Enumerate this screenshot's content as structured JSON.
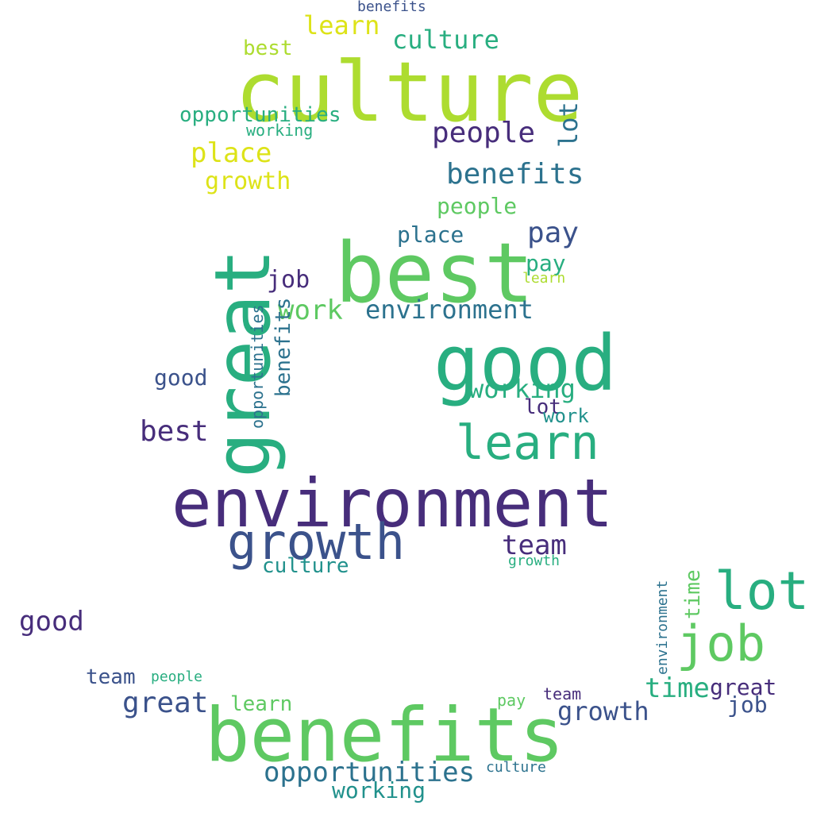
{
  "palette": {
    "purple": "#472d7b",
    "indigo": "#3b528b",
    "blue": "#2c728e",
    "teal": "#21918c",
    "green": "#28ae80",
    "lightgreen": "#5ec962",
    "lime": "#addc30",
    "yellow": "#dde318"
  },
  "words": [
    {
      "text": "culture",
      "color": "lime"
    },
    {
      "text": "best",
      "color": "lightgreen"
    },
    {
      "text": "good",
      "color": "green"
    },
    {
      "text": "great",
      "color": "green"
    },
    {
      "text": "environment",
      "color": "purple"
    },
    {
      "text": "growth",
      "color": "indigo"
    },
    {
      "text": "learn",
      "color": "green"
    },
    {
      "text": "benefits",
      "color": "lightgreen"
    },
    {
      "text": "lot",
      "color": "green"
    },
    {
      "text": "job",
      "color": "lightgreen"
    },
    {
      "text": "opportunities",
      "color": "blue"
    },
    {
      "text": "team",
      "color": "purple"
    },
    {
      "text": "people",
      "color": "purple"
    },
    {
      "text": "benefits",
      "color": "blue"
    },
    {
      "text": "pay",
      "color": "indigo"
    },
    {
      "text": "environment",
      "color": "blue"
    },
    {
      "text": "working",
      "color": "green"
    },
    {
      "text": "work",
      "color": "lightgreen"
    },
    {
      "text": "culture",
      "color": "green"
    },
    {
      "text": "learn",
      "color": "yellow"
    },
    {
      "text": "place",
      "color": "yellow"
    },
    {
      "text": "growth",
      "color": "yellow"
    },
    {
      "text": "opportunities",
      "color": "green"
    },
    {
      "text": "people",
      "color": "lightgreen"
    },
    {
      "text": "place",
      "color": "blue"
    },
    {
      "text": "best",
      "color": "purple"
    },
    {
      "text": "great",
      "color": "indigo"
    },
    {
      "text": "good",
      "color": "purple"
    },
    {
      "text": "job",
      "color": "indigo"
    },
    {
      "text": "pay",
      "color": "green"
    },
    {
      "text": "working",
      "color": "teal"
    },
    {
      "text": "growth",
      "color": "indigo"
    },
    {
      "text": "team",
      "color": "indigo"
    },
    {
      "text": "good",
      "color": "indigo"
    },
    {
      "text": "time",
      "color": "green"
    },
    {
      "text": "benefits",
      "color": "blue"
    },
    {
      "text": "opportunities",
      "color": "blue"
    },
    {
      "text": "working",
      "color": "green"
    },
    {
      "text": "learn",
      "color": "lightgreen"
    },
    {
      "text": "culture",
      "color": "teal"
    },
    {
      "text": "team",
      "color": "purple"
    },
    {
      "text": "great",
      "color": "purple"
    },
    {
      "text": "job",
      "color": "purple"
    },
    {
      "text": "time",
      "color": "lightgreen"
    },
    {
      "text": "lot",
      "color": "blue"
    },
    {
      "text": "culture",
      "color": "blue"
    },
    {
      "text": "lot",
      "color": "purple"
    },
    {
      "text": "work",
      "color": "teal"
    },
    {
      "text": "best",
      "color": "lime"
    },
    {
      "text": "learn",
      "color": "lime"
    },
    {
      "text": "people",
      "color": "green"
    },
    {
      "text": "benefits",
      "color": "indigo"
    },
    {
      "text": "growth",
      "color": "green"
    },
    {
      "text": "pay",
      "color": "lightgreen"
    },
    {
      "text": "environment",
      "color": "blue"
    }
  ],
  "caption": ""
}
